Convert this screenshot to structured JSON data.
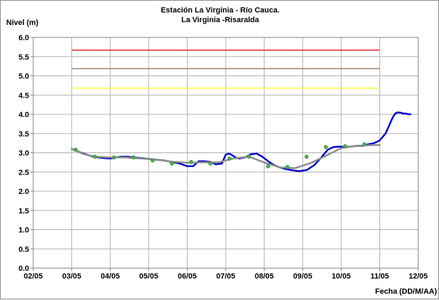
{
  "chart_data": {
    "type": "line",
    "title": "Estación La Virginia  - Río Cauca.",
    "subtitle": "La Virginia -Risaralda",
    "ylabel": "Nivel (m)",
    "xlabel": "Fecha (DD/M/AA)",
    "ylim": [
      0.0,
      6.0
    ],
    "yticks": [
      "0.0",
      "0.5",
      "1.0",
      "1.5",
      "2.0",
      "2.5",
      "3.0",
      "3.5",
      "4.0",
      "4.5",
      "5.0",
      "5.5",
      "6.0"
    ],
    "xlim": [
      0,
      10
    ],
    "xtick_labels": [
      "02/05",
      "03/05",
      "04/05",
      "05/05",
      "06/05",
      "07/05",
      "08/05",
      "09/05",
      "10/05",
      "11/05",
      "12/05"
    ],
    "grid": true,
    "legend": "none",
    "thresholds": [
      {
        "value": 5.67,
        "color": "#e02020"
      },
      {
        "value": 5.19,
        "color": "#9b8470"
      },
      {
        "value": 4.68,
        "color": "#ffff40"
      }
    ],
    "series": [
      {
        "kind": "observed",
        "color": "#0000cc",
        "x": [
          1.0,
          1.12,
          1.25,
          1.4,
          1.55,
          1.7,
          1.85,
          2.0,
          2.15,
          2.3,
          2.45,
          2.6,
          2.8,
          3.0,
          3.2,
          3.4,
          3.6,
          3.8,
          4.0,
          4.15,
          4.3,
          4.45,
          4.6,
          4.75,
          4.9,
          5.0,
          5.08,
          5.15,
          5.25,
          5.35,
          5.5,
          5.65,
          5.8,
          5.95,
          6.1,
          6.25,
          6.4,
          6.55,
          6.7,
          6.9,
          7.1,
          7.3,
          7.5,
          7.65,
          7.8,
          7.95,
          8.1,
          8.25,
          8.4,
          8.55,
          8.7,
          8.85,
          9.0,
          9.15,
          9.25,
          9.33,
          9.4,
          9.47,
          9.55,
          9.62,
          9.68,
          9.75,
          9.8
        ],
        "y": [
          3.1,
          3.05,
          3.0,
          2.95,
          2.9,
          2.88,
          2.86,
          2.85,
          2.88,
          2.9,
          2.9,
          2.88,
          2.86,
          2.84,
          2.82,
          2.8,
          2.76,
          2.72,
          2.65,
          2.65,
          2.78,
          2.78,
          2.76,
          2.7,
          2.72,
          2.95,
          2.98,
          2.95,
          2.88,
          2.85,
          2.88,
          2.96,
          2.98,
          2.9,
          2.78,
          2.68,
          2.62,
          2.58,
          2.55,
          2.52,
          2.55,
          2.68,
          2.9,
          3.08,
          3.15,
          3.16,
          3.15,
          3.16,
          3.18,
          3.18,
          3.22,
          3.25,
          3.32,
          3.5,
          3.72,
          3.9,
          4.02,
          4.05,
          4.04,
          4.02,
          4.02,
          4.0,
          4.0
        ]
      },
      {
        "kind": "smoothed",
        "color": "#8c8c8c",
        "x": [
          1.0,
          1.3,
          1.6,
          2.0,
          2.4,
          2.8,
          3.2,
          3.6,
          4.0,
          4.4,
          4.8,
          5.2,
          5.6,
          6.0,
          6.4,
          6.8,
          7.2,
          7.6,
          8.0,
          8.4,
          8.8,
          9.0
        ],
        "y": [
          3.1,
          2.97,
          2.9,
          2.88,
          2.88,
          2.85,
          2.82,
          2.77,
          2.74,
          2.75,
          2.75,
          2.85,
          2.9,
          2.75,
          2.62,
          2.6,
          2.73,
          2.92,
          3.12,
          3.18,
          3.2,
          3.2
        ]
      },
      {
        "kind": "markers",
        "color": "#4caf50",
        "x": [
          1.1,
          1.6,
          2.1,
          2.6,
          3.1,
          3.6,
          4.1,
          4.6,
          5.1,
          5.6,
          6.1,
          6.6,
          7.1,
          7.6,
          8.1,
          8.6
        ],
        "y": [
          3.08,
          2.9,
          2.88,
          2.88,
          2.8,
          2.72,
          2.76,
          2.72,
          2.85,
          2.9,
          2.65,
          2.63,
          2.9,
          3.15,
          3.17,
          3.22
        ]
      }
    ]
  }
}
